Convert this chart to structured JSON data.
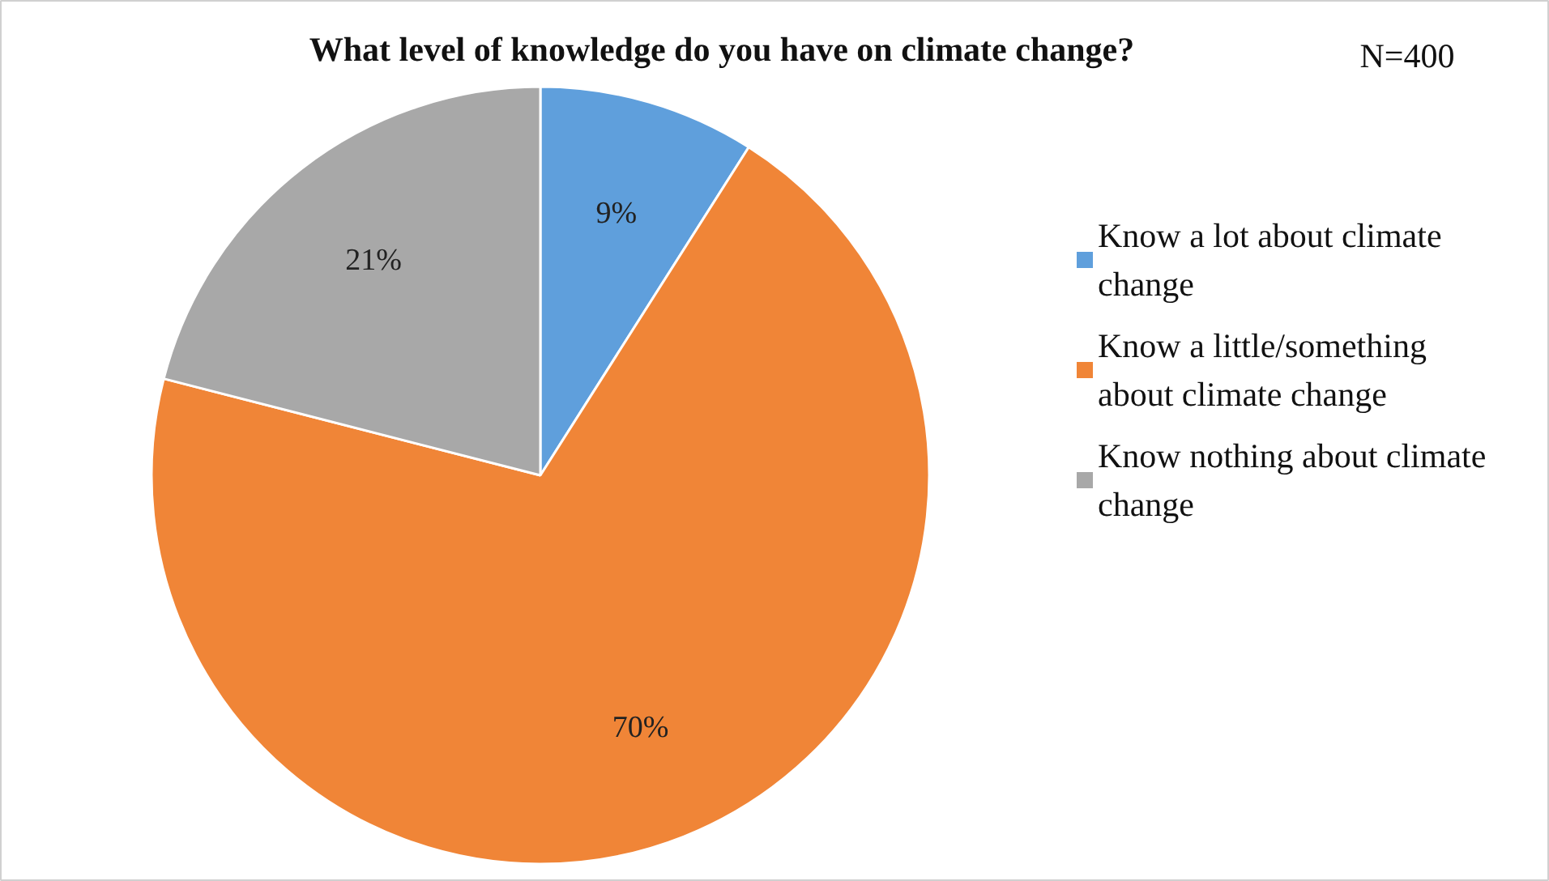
{
  "chart_data": {
    "type": "pie",
    "title": "What level of knowledge do you have on climate change?",
    "annotations": [
      "N=400"
    ],
    "categories": [
      "Know a lot about climate change",
      "Know a little/something about climate change",
      "Know nothing about climate change"
    ],
    "values": [
      9,
      70,
      21
    ],
    "colors": [
      "#5f9fdc",
      "#f08537",
      "#a8a8a8"
    ],
    "value_labels": [
      "9%",
      "70%",
      "21%"
    ],
    "legend": "right"
  }
}
